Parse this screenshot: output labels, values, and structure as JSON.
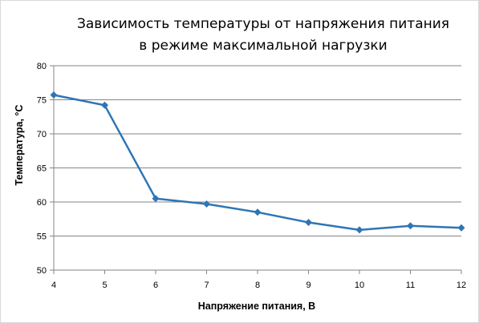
{
  "chart_data": {
    "type": "line",
    "title_line1": "Зависимость температуры  от напряжения  питания",
    "title_line2": "в режиме  максимальной  нагрузки",
    "xlabel": "Напряжение питания, В",
    "ylabel": "Температура, °С",
    "x": [
      4,
      5,
      6,
      7,
      8,
      9,
      10,
      11,
      12
    ],
    "series": [
      {
        "values": [
          75.7,
          74.2,
          60.5,
          59.7,
          58.5,
          57.0,
          55.9,
          56.5,
          56.2
        ],
        "color": "#2f75b5"
      }
    ],
    "xlim": [
      4,
      12
    ],
    "ylim": [
      50,
      80
    ],
    "x_ticks": [
      "4",
      "5",
      "6",
      "7",
      "8",
      "9",
      "10",
      "11",
      "12"
    ],
    "y_ticks": [
      "50",
      "55",
      "60",
      "65",
      "70",
      "75",
      "80"
    ],
    "grid": "horizontal",
    "legend": "none",
    "marker": "diamond"
  }
}
